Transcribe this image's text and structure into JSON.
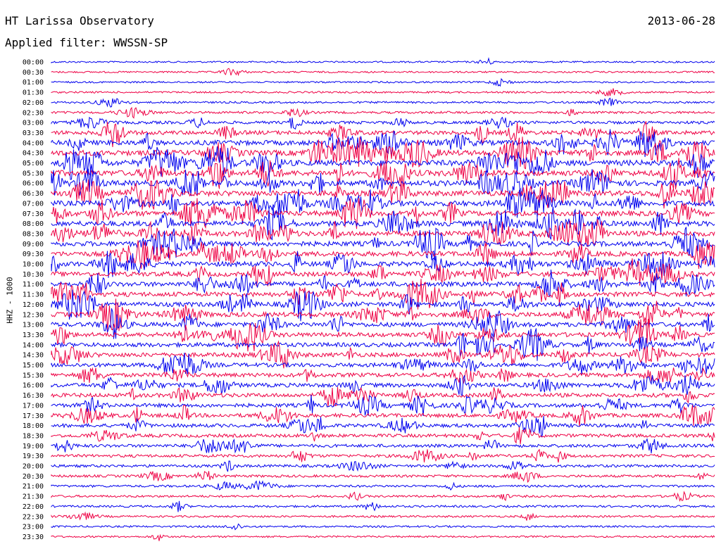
{
  "header": {
    "observatory": "HT Larissa Observatory",
    "filter_label": "Applied filter: WWSSN-SP",
    "date": "2013-06-28"
  },
  "chart_data": {
    "type": "line",
    "title": "HT Larissa Observatory",
    "subtitle": "Applied filter: WWSSN-SP",
    "ylabel": "HHZ - 1000",
    "xlabel": "",
    "colors": [
      "#0000ee",
      "#ee0044"
    ],
    "trace_labels": [
      "00:00",
      "00:30",
      "01:00",
      "01:30",
      "02:00",
      "02:30",
      "03:00",
      "03:30",
      "04:00",
      "04:30",
      "05:00",
      "05:30",
      "06:00",
      "06:30",
      "07:00",
      "07:30",
      "08:00",
      "08:30",
      "09:00",
      "09:30",
      "10:00",
      "10:30",
      "11:00",
      "11:30",
      "12:00",
      "12:30",
      "13:00",
      "13:30",
      "14:00",
      "14:30",
      "15:00",
      "15:30",
      "16:00",
      "16:30",
      "17:00",
      "17:30",
      "18:00",
      "18:30",
      "19:00",
      "19:30",
      "20:00",
      "20:30",
      "21:00",
      "21:30",
      "22:00",
      "22:30",
      "23:00",
      "23:30"
    ],
    "activity_level": [
      0.05,
      0.06,
      0.06,
      0.08,
      0.12,
      0.2,
      0.35,
      0.6,
      0.8,
      0.9,
      0.95,
      0.95,
      0.95,
      0.9,
      0.9,
      0.85,
      0.85,
      0.85,
      0.8,
      0.8,
      0.8,
      0.75,
      0.75,
      0.75,
      0.75,
      0.75,
      0.7,
      0.7,
      0.65,
      0.65,
      0.6,
      0.6,
      0.6,
      0.6,
      0.55,
      0.55,
      0.5,
      0.45,
      0.4,
      0.35,
      0.3,
      0.25,
      0.2,
      0.18,
      0.15,
      0.12,
      0.1,
      0.08
    ],
    "grid": false,
    "legend": "none"
  }
}
